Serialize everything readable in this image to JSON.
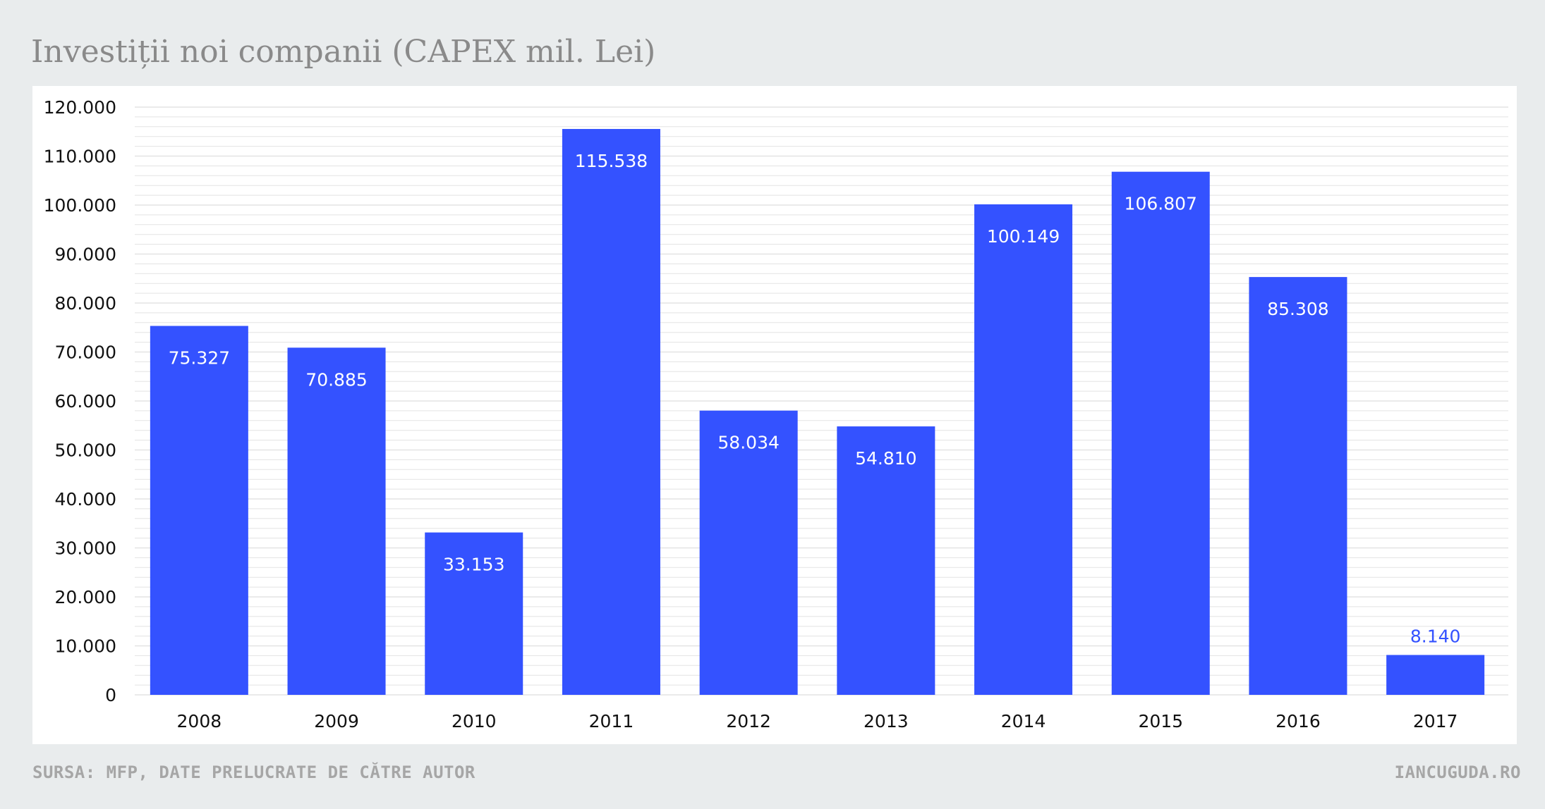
{
  "header": {
    "title": "Investiții noi companii (CAPEX mil. Lei)"
  },
  "footer": {
    "source": "SURSA: MFP, DATE PRELUCRATE DE CĂTRE AUTOR",
    "site": "IANCUGUDA.RO"
  },
  "colors": {
    "bar": "#3452ff",
    "background": "#e9eced",
    "panel": "#ffffff",
    "grid": "#e3e3e3",
    "label_inside": "#ffffff",
    "label_outside": "#3452ff"
  },
  "chart_data": {
    "type": "bar",
    "title": "Investiții noi companii (CAPEX mil. Lei)",
    "xlabel": "",
    "ylabel": "",
    "ylim": [
      0,
      120000
    ],
    "yticks": [
      0,
      10000,
      20000,
      30000,
      40000,
      50000,
      60000,
      70000,
      80000,
      90000,
      100000,
      110000,
      120000
    ],
    "ytick_labels": [
      "0",
      "10.000",
      "20.000",
      "30.000",
      "40.000",
      "50.000",
      "60.000",
      "70.000",
      "80.000",
      "90.000",
      "100.000",
      "110.000",
      "120.000"
    ],
    "grid": true,
    "legend": "none",
    "categories": [
      "2008",
      "2009",
      "2010",
      "2011",
      "2012",
      "2013",
      "2014",
      "2015",
      "2016",
      "2017"
    ],
    "values": [
      75327,
      70885,
      33153,
      115538,
      58034,
      54810,
      100149,
      106807,
      85308,
      8140
    ],
    "value_labels": [
      "75.327",
      "70.885",
      "33.153",
      "115.538",
      "58.034",
      "54.810",
      "100.149",
      "106.807",
      "85.308",
      "8.140"
    ]
  }
}
